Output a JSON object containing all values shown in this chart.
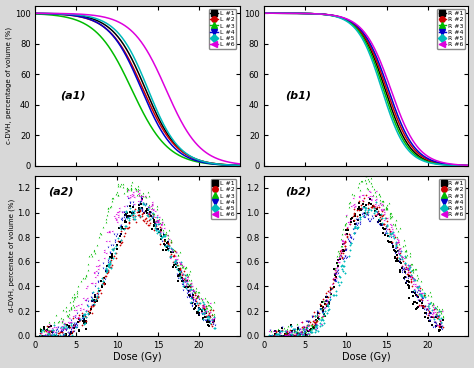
{
  "panel_labels": [
    "(a1)",
    "(b1)",
    "(a2)",
    "(b2)"
  ],
  "left_labels": [
    "L #1",
    "L #2",
    "L #3",
    "L #4",
    "L #5",
    "L #6"
  ],
  "right_labels": [
    "R #1",
    "R #2",
    "R #3",
    "R #4",
    "R #5",
    "R #6"
  ],
  "colors": [
    "#000000",
    "#cc0000",
    "#00bb00",
    "#0000cc",
    "#00bbbb",
    "#dd00dd"
  ],
  "markers_cdvh": [
    "s",
    "o",
    "^",
    "v",
    "D",
    "<"
  ],
  "markers_ddvh": [
    "s",
    "o",
    "^",
    "v",
    "D",
    "<"
  ],
  "cdvh_ylabel": "c-DVH, percentage of volume (%)",
  "ddvh_ylabel": "d-DVH, percenate of volume (%)",
  "xlabel": "Dose (Gy)",
  "xlim": [
    0,
    25
  ],
  "cdvh_ylim": [
    0,
    105
  ],
  "ddvh_ylim": [
    0,
    1.3
  ],
  "cdvh_yticks": [
    0,
    20,
    40,
    60,
    80,
    100
  ],
  "ddvh_yticks": [
    0.0,
    0.2,
    0.4,
    0.6,
    0.8,
    1.0,
    1.2
  ],
  "xticks": [
    0,
    5,
    10,
    15,
    20
  ],
  "bg_color": "#d8d8d8",
  "panel_bg": "#ffffff",
  "cdvh_left_mids": [
    13.5,
    13.2,
    11.8,
    13.0,
    13.8,
    16.0
  ],
  "cdvh_left_slopes": [
    0.5,
    0.48,
    0.45,
    0.5,
    0.52,
    0.48
  ],
  "cdvh_right_mids": [
    14.8,
    15.0,
    14.6,
    15.2,
    14.4,
    15.5
  ],
  "cdvh_right_slopes": [
    0.65,
    0.63,
    0.66,
    0.62,
    0.67,
    0.6
  ],
  "ddvh_left_peaks": [
    12.5,
    12.8,
    11.2,
    12.3,
    12.6,
    12.0
  ],
  "ddvh_left_pvals": [
    1.05,
    0.98,
    1.22,
    1.08,
    1.02,
    1.15
  ],
  "ddvh_left_wleft": [
    3.2,
    3.5,
    3.8,
    3.3,
    3.4,
    3.6
  ],
  "ddvh_left_wright": [
    4.2,
    4.5,
    5.5,
    4.3,
    4.4,
    4.8
  ],
  "ddvh_right_peaks": [
    12.2,
    12.4,
    12.0,
    12.6,
    12.8,
    12.1
  ],
  "ddvh_right_pvals": [
    1.05,
    1.08,
    1.25,
    0.98,
    1.02,
    1.15
  ],
  "ddvh_right_wleft": [
    2.8,
    3.0,
    2.6,
    3.2,
    2.9,
    2.7
  ],
  "ddvh_right_wright": [
    4.0,
    4.2,
    4.8,
    4.1,
    4.3,
    4.5
  ]
}
